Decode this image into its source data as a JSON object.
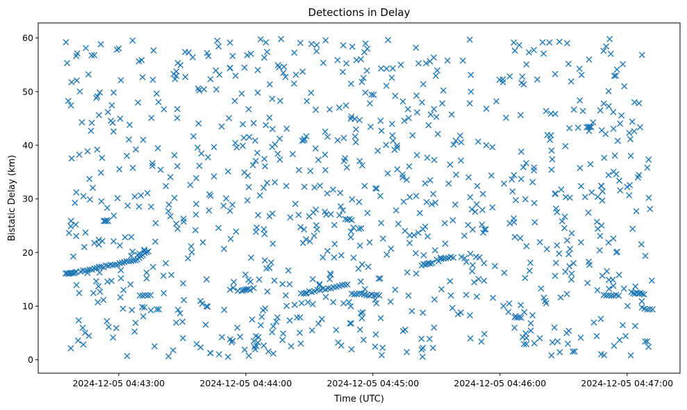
{
  "chart_data": {
    "type": "scatter",
    "title": "Detections in Delay",
    "xlabel": "Time (UTC)",
    "ylabel": "Bistatic Delay (km)",
    "marker": "x",
    "color": "#1f77b4",
    "grid": false,
    "xlim": [
      "2024-12-05 04:42:22",
      "2024-12-05 04:47:25"
    ],
    "ylim": [
      -2.5,
      62.8
    ],
    "xticks": [
      "2024-12-05 04:43:00",
      "2024-12-05 04:44:00",
      "2024-12-05 04:45:00",
      "2024-12-05 04:46:00",
      "2024-12-05 04:47:00"
    ],
    "yticks": [
      0,
      10,
      20,
      30,
      40,
      50,
      60
    ],
    "x_time_range": [
      "2024-12-05 04:42:35",
      "2024-12-05 04:47:12"
    ],
    "series": [
      {
        "segments": [
          {
            "t0": "2024-12-05 04:42:35",
            "t1": "2024-12-05 04:42:40",
            "y0": 16.0,
            "y1": 16.3,
            "n": 9
          },
          {
            "t0": "2024-12-05 04:42:42",
            "t1": "2024-12-05 04:43:07",
            "y0": 16.5,
            "y1": 18.5,
            "n": 24
          },
          {
            "t0": "2024-12-05 04:43:08",
            "t1": "2024-12-05 04:43:14",
            "y0": 18.6,
            "y1": 20.3,
            "n": 8
          },
          {
            "t0": "2024-12-05 04:42:53",
            "t1": "2024-12-05 04:42:55",
            "y0": 26.0,
            "y1": 26.0,
            "n": 5
          },
          {
            "t0": "2024-12-05 04:43:10",
            "t1": "2024-12-05 04:43:15",
            "y0": 12.0,
            "y1": 12.0,
            "n": 5
          },
          {
            "t0": "2024-12-05 04:43:58",
            "t1": "2024-12-05 04:44:02",
            "y0": 12.8,
            "y1": 13.1,
            "n": 6
          },
          {
            "t0": "2024-12-05 04:44:26",
            "t1": "2024-12-05 04:44:48",
            "y0": 12.4,
            "y1": 14.0,
            "n": 18
          },
          {
            "t0": "2024-12-05 04:44:50",
            "t1": "2024-12-05 04:45:03",
            "y0": 12.3,
            "y1": 12.0,
            "n": 12
          },
          {
            "t0": "2024-12-05 04:44:47",
            "t1": "2024-12-05 04:44:50",
            "y0": 26.2,
            "y1": 26.2,
            "n": 4
          },
          {
            "t0": "2024-12-05 04:45:23",
            "t1": "2024-12-05 04:45:28",
            "y0": 17.7,
            "y1": 18.0,
            "n": 7
          },
          {
            "t0": "2024-12-05 04:45:31",
            "t1": "2024-12-05 04:45:38",
            "y0": 18.5,
            "y1": 19.2,
            "n": 7
          },
          {
            "t0": "2024-12-05 04:46:07",
            "t1": "2024-12-05 04:46:10",
            "y0": 8.0,
            "y1": 8.0,
            "n": 4
          },
          {
            "t0": "2024-12-05 04:46:41",
            "t1": "2024-12-05 04:46:43",
            "y0": 43.5,
            "y1": 43.5,
            "n": 4
          },
          {
            "t0": "2024-12-05 04:46:49",
            "t1": "2024-12-05 04:46:56",
            "y0": 12.2,
            "y1": 12.0,
            "n": 7
          },
          {
            "t0": "2024-12-05 04:47:02",
            "t1": "2024-12-05 04:47:08",
            "y0": 12.5,
            "y1": 12.2,
            "n": 8
          },
          {
            "t0": "2024-12-05 04:47:07",
            "t1": "2024-12-05 04:47:12",
            "y0": 9.6,
            "y1": 9.4,
            "n": 5
          }
        ],
        "background_noise": {
          "count": 900,
          "y_range": [
            0.5,
            59.9
          ],
          "distribution": "uniform"
        }
      }
    ]
  }
}
